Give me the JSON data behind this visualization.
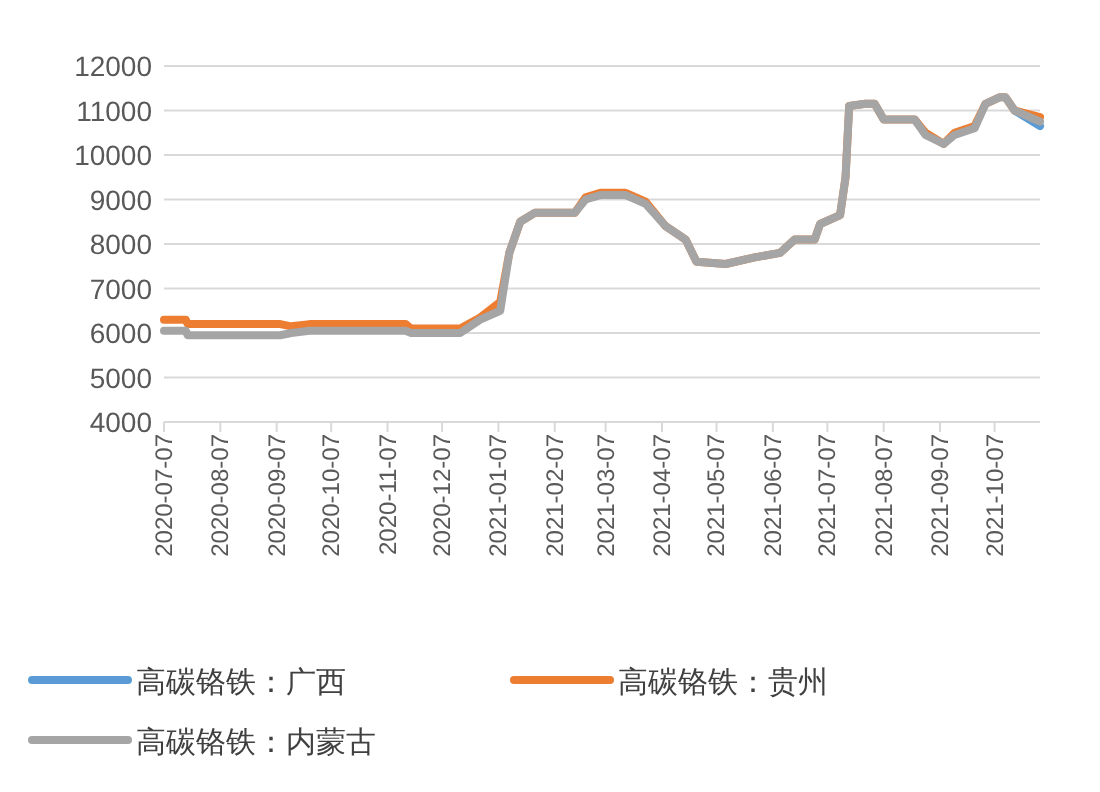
{
  "chart_data": {
    "type": "line",
    "x": [
      "2020-07-07",
      "2020-07-19",
      "2020-07-20",
      "2020-09-09",
      "2020-09-15",
      "2020-09-25",
      "2020-11-17",
      "2020-11-20",
      "2020-12-17",
      "2020-12-28",
      "2021-01-08",
      "2021-01-13",
      "2021-01-19",
      "2021-01-27",
      "2021-02-18",
      "2021-02-24",
      "2021-03-04",
      "2021-03-18",
      "2021-03-29",
      "2021-04-09",
      "2021-04-20",
      "2021-04-26",
      "2021-05-12",
      "2021-05-28",
      "2021-06-11",
      "2021-06-19",
      "2021-06-30",
      "2021-07-03",
      "2021-07-14",
      "2021-07-17",
      "2021-07-19",
      "2021-07-28",
      "2021-08-02",
      "2021-08-07",
      "2021-08-24",
      "2021-08-30",
      "2021-09-09",
      "2021-09-15",
      "2021-09-26",
      "2021-10-02",
      "2021-10-10",
      "2021-10-13",
      "2021-10-18",
      "2021-11-01"
    ],
    "series": [
      {
        "name": "高碳铬铁：广西",
        "color": "#5b9bd5",
        "values": [
          null,
          null,
          null,
          null,
          null,
          null,
          null,
          null,
          null,
          null,
          null,
          null,
          null,
          null,
          null,
          null,
          null,
          null,
          null,
          null,
          null,
          null,
          null,
          null,
          null,
          null,
          null,
          null,
          null,
          null,
          null,
          null,
          null,
          null,
          null,
          null,
          null,
          null,
          null,
          null,
          null,
          null,
          11000,
          10650
        ]
      },
      {
        "name": "高碳铬铁：贵州",
        "color": "#ed7d31",
        "values": [
          6300,
          6300,
          6200,
          6200,
          6150,
          6200,
          6200,
          6100,
          6100,
          6350,
          6700,
          7800,
          8500,
          8700,
          8700,
          9050,
          9150,
          9150,
          8950,
          8400,
          8100,
          7600,
          7550,
          7700,
          7800,
          8100,
          8100,
          8450,
          8650,
          9500,
          11100,
          11150,
          11150,
          10800,
          10800,
          10500,
          10250,
          10500,
          10650,
          11150,
          11300,
          11300,
          11000,
          10850
        ]
      },
      {
        "name": "高碳铬铁：内蒙古",
        "color": "#a5a5a5",
        "values": [
          6050,
          6050,
          5950,
          5950,
          6000,
          6050,
          6050,
          6000,
          6000,
          6300,
          6500,
          7800,
          8500,
          8700,
          8700,
          9000,
          9100,
          9100,
          8900,
          8400,
          8100,
          7600,
          7550,
          7700,
          7800,
          8100,
          8100,
          8450,
          8650,
          9500,
          11100,
          11150,
          11150,
          10800,
          10800,
          10450,
          10250,
          10450,
          10600,
          11150,
          11300,
          11300,
          11000,
          10750
        ]
      }
    ],
    "xlim": [
      "2020-07-07",
      "2021-11-01"
    ],
    "xticks": [
      "2020-07-07",
      "2020-08-07",
      "2020-09-07",
      "2020-10-07",
      "2020-11-07",
      "2020-12-07",
      "2021-01-07",
      "2021-02-07",
      "2021-03-07",
      "2021-04-07",
      "2021-05-07",
      "2021-06-07",
      "2021-07-07",
      "2021-08-07",
      "2021-09-07",
      "2021-10-07"
    ],
    "ylim": [
      4000,
      12000
    ],
    "yticks": [
      4000,
      5000,
      6000,
      7000,
      8000,
      9000,
      10000,
      11000,
      12000
    ],
    "grid": "y",
    "legend": "bottom",
    "marker": "none",
    "line_style": "solid"
  }
}
